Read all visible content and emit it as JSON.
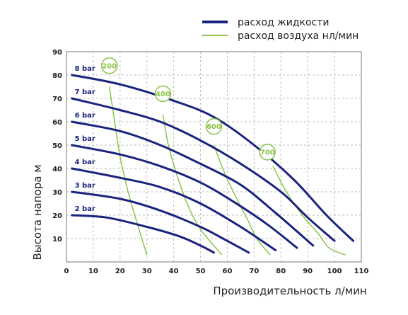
{
  "chart_data": {
    "type": "line",
    "xlabel": "Производительность л/мин",
    "ylabel": "Высота напора м",
    "xlim": [
      0,
      110
    ],
    "ylim": [
      0,
      90
    ],
    "x_ticks": [
      0,
      10,
      20,
      30,
      40,
      50,
      60,
      70,
      80,
      90,
      100,
      110
    ],
    "y_ticks": [
      10,
      20,
      30,
      40,
      50,
      60,
      70,
      80,
      90
    ],
    "grid": true,
    "legend_position": "top-right",
    "legend": [
      {
        "label": "расход жидкости",
        "color": "#1a237e"
      },
      {
        "label": "расход воздуха нл/мин",
        "color": "#8bc34a"
      }
    ],
    "pressure_series": [
      {
        "name": "8 bar",
        "color": "#1a237e",
        "points": [
          [
            2,
            80
          ],
          [
            20,
            76
          ],
          [
            40,
            69
          ],
          [
            55,
            62
          ],
          [
            70,
            50
          ],
          [
            85,
            35
          ],
          [
            97,
            20
          ],
          [
            107,
            9
          ]
        ]
      },
      {
        "name": "7 bar",
        "color": "#1a237e",
        "points": [
          [
            2,
            70
          ],
          [
            20,
            65
          ],
          [
            35,
            60
          ],
          [
            50,
            52
          ],
          [
            65,
            42
          ],
          [
            80,
            30
          ],
          [
            90,
            19
          ],
          [
            100,
            9
          ]
        ]
      },
      {
        "name": "6 bar",
        "color": "#1a237e",
        "points": [
          [
            2,
            60
          ],
          [
            20,
            56
          ],
          [
            35,
            50
          ],
          [
            50,
            42
          ],
          [
            65,
            33
          ],
          [
            78,
            21
          ],
          [
            92,
            7
          ]
        ]
      },
      {
        "name": "5 bar",
        "color": "#1a237e",
        "points": [
          [
            2,
            50
          ],
          [
            20,
            46
          ],
          [
            35,
            41
          ],
          [
            50,
            34
          ],
          [
            62,
            26
          ],
          [
            75,
            16
          ],
          [
            86,
            6
          ]
        ]
      },
      {
        "name": "4 bar",
        "color": "#1a237e",
        "points": [
          [
            2,
            40
          ],
          [
            20,
            36
          ],
          [
            35,
            32
          ],
          [
            50,
            25
          ],
          [
            65,
            15
          ],
          [
            78,
            5
          ]
        ]
      },
      {
        "name": "3 bar",
        "color": "#1a237e",
        "points": [
          [
            2,
            30
          ],
          [
            20,
            27
          ],
          [
            35,
            22
          ],
          [
            50,
            15
          ],
          [
            60,
            9
          ],
          [
            68,
            4
          ]
        ]
      },
      {
        "name": "2 bar",
        "color": "#1a237e",
        "points": [
          [
            2,
            20
          ],
          [
            15,
            19
          ],
          [
            30,
            15
          ],
          [
            42,
            11
          ],
          [
            50,
            7
          ],
          [
            55,
            4
          ]
        ]
      }
    ],
    "air_series": [
      {
        "name": "200",
        "color": "#8bc34a",
        "label_at": [
          16,
          84
        ],
        "points": [
          [
            16,
            75
          ],
          [
            18,
            60
          ],
          [
            20,
            45
          ],
          [
            23,
            30
          ],
          [
            26,
            18
          ],
          [
            30,
            3
          ]
        ]
      },
      {
        "name": "400",
        "color": "#8bc34a",
        "label_at": [
          36,
          72
        ],
        "points": [
          [
            36,
            63
          ],
          [
            38,
            50
          ],
          [
            41,
            38
          ],
          [
            45,
            25
          ],
          [
            50,
            14
          ],
          [
            58,
            3
          ]
        ]
      },
      {
        "name": "600",
        "color": "#8bc34a",
        "label_at": [
          55,
          58
        ],
        "points": [
          [
            55,
            50
          ],
          [
            59,
            38
          ],
          [
            64,
            26
          ],
          [
            68,
            17
          ],
          [
            71,
            10
          ],
          [
            76,
            3
          ]
        ]
      },
      {
        "name": "700",
        "color": "#8bc34a",
        "label_at": [
          75,
          47
        ],
        "points": [
          [
            77,
            41
          ],
          [
            82,
            30
          ],
          [
            88,
            20
          ],
          [
            94,
            12
          ],
          [
            98,
            6
          ],
          [
            104,
            3
          ]
        ]
      }
    ]
  }
}
